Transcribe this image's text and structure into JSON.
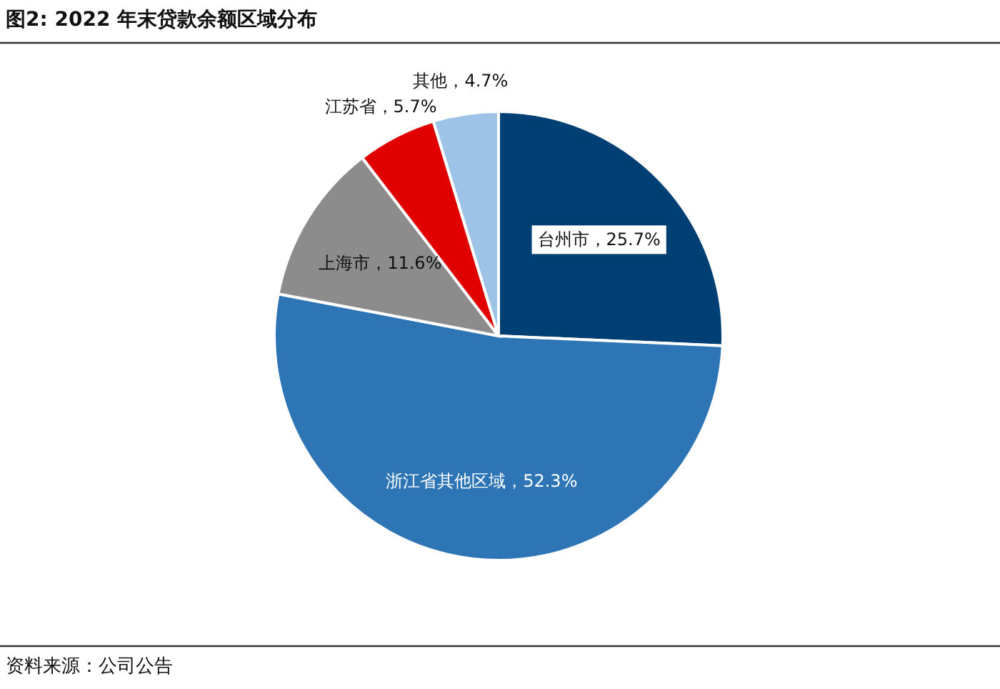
{
  "chart_data": {
    "type": "pie",
    "title": "图2: 2022 年末贷款余额区域分布",
    "categories": [
      "台州市",
      "浙江省其他区域",
      "上海市",
      "江苏省",
      "其他"
    ],
    "values": [
      25.7,
      52.3,
      11.6,
      5.7,
      4.7
    ],
    "value_labels": [
      "25.7%",
      "52.3%",
      "11.6%",
      "5.7%",
      "4.7%"
    ],
    "colors": [
      "#003f73",
      "#2e75b6",
      "#8c8c8c",
      "#e00000",
      "#9dc3e6"
    ],
    "legend": false,
    "annotations": [
      "资料来源：公司公告"
    ]
  }
}
